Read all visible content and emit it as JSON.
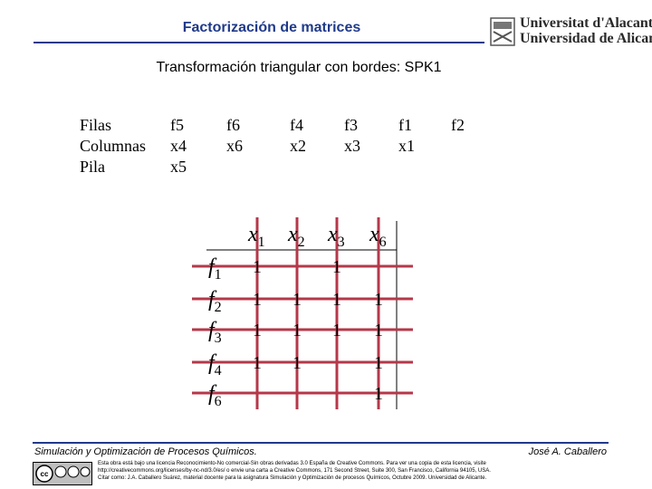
{
  "header": {
    "title": "Factorización de matrices",
    "logo_line1": "Universitat d'Alacant",
    "logo_line2": "Universidad de Alicante"
  },
  "subtitle": "Transformación triangular con bordes: SPK1",
  "table": {
    "row_labels": [
      "Filas",
      "Columnas",
      "Pila"
    ],
    "columns": [
      {
        "filas": "f5",
        "columnas": "x4",
        "pila": "x5"
      },
      {
        "filas": "f6",
        "columnas": "x6",
        "pila": ""
      },
      {
        "filas": "f4",
        "columnas": "x2",
        "pila": ""
      },
      {
        "filas": "f3",
        "columnas": "x3",
        "pila": ""
      },
      {
        "filas": "f1",
        "columnas": "x1",
        "pila": ""
      },
      {
        "filas": "f2",
        "columnas": "",
        "pila": ""
      }
    ]
  },
  "matrix": {
    "col_labels": [
      {
        "base": "x",
        "sub": "1"
      },
      {
        "base": "x",
        "sub": "2"
      },
      {
        "base": "x",
        "sub": "3"
      },
      {
        "base": "x",
        "sub": "6"
      }
    ],
    "row_labels": [
      {
        "base": "f",
        "sub": "1"
      },
      {
        "base": "f",
        "sub": "2"
      },
      {
        "base": "f",
        "sub": "3"
      },
      {
        "base": "f",
        "sub": "4"
      },
      {
        "base": "f",
        "sub": "6"
      }
    ],
    "marks": [
      [
        "1",
        "",
        "1",
        ""
      ],
      [
        "1",
        "1",
        "1",
        "1"
      ],
      [
        "1",
        "1",
        "1",
        "1"
      ],
      [
        "1",
        "1",
        "",
        "1"
      ],
      [
        "",
        "",
        "",
        "1"
      ]
    ],
    "grid_color": "#b5384a"
  },
  "footer": {
    "left": "Simulación y Optimización de Procesos Químicos.",
    "right": "José A. Caballero",
    "license_lines": [
      "Esta obra está bajo una licencia Reconocimiento-No comercial-Sin obras derivadas 3.0 España de Creative Commons. Para ver una copia de esta licencia, visite",
      "http://creativecommons.org/licenses/by-nc-nd/3.0/es/ o envie una carta a Creative Commons, 171 Second Street, Suite 300, San Francisco, California 94105, USA.",
      "Cítar como: J.A. Caballero Suárez, material docente para la asignatura Simulación y Optimización de procesos Químicos, Octubre 2009. Universidad de Alicante."
    ]
  }
}
